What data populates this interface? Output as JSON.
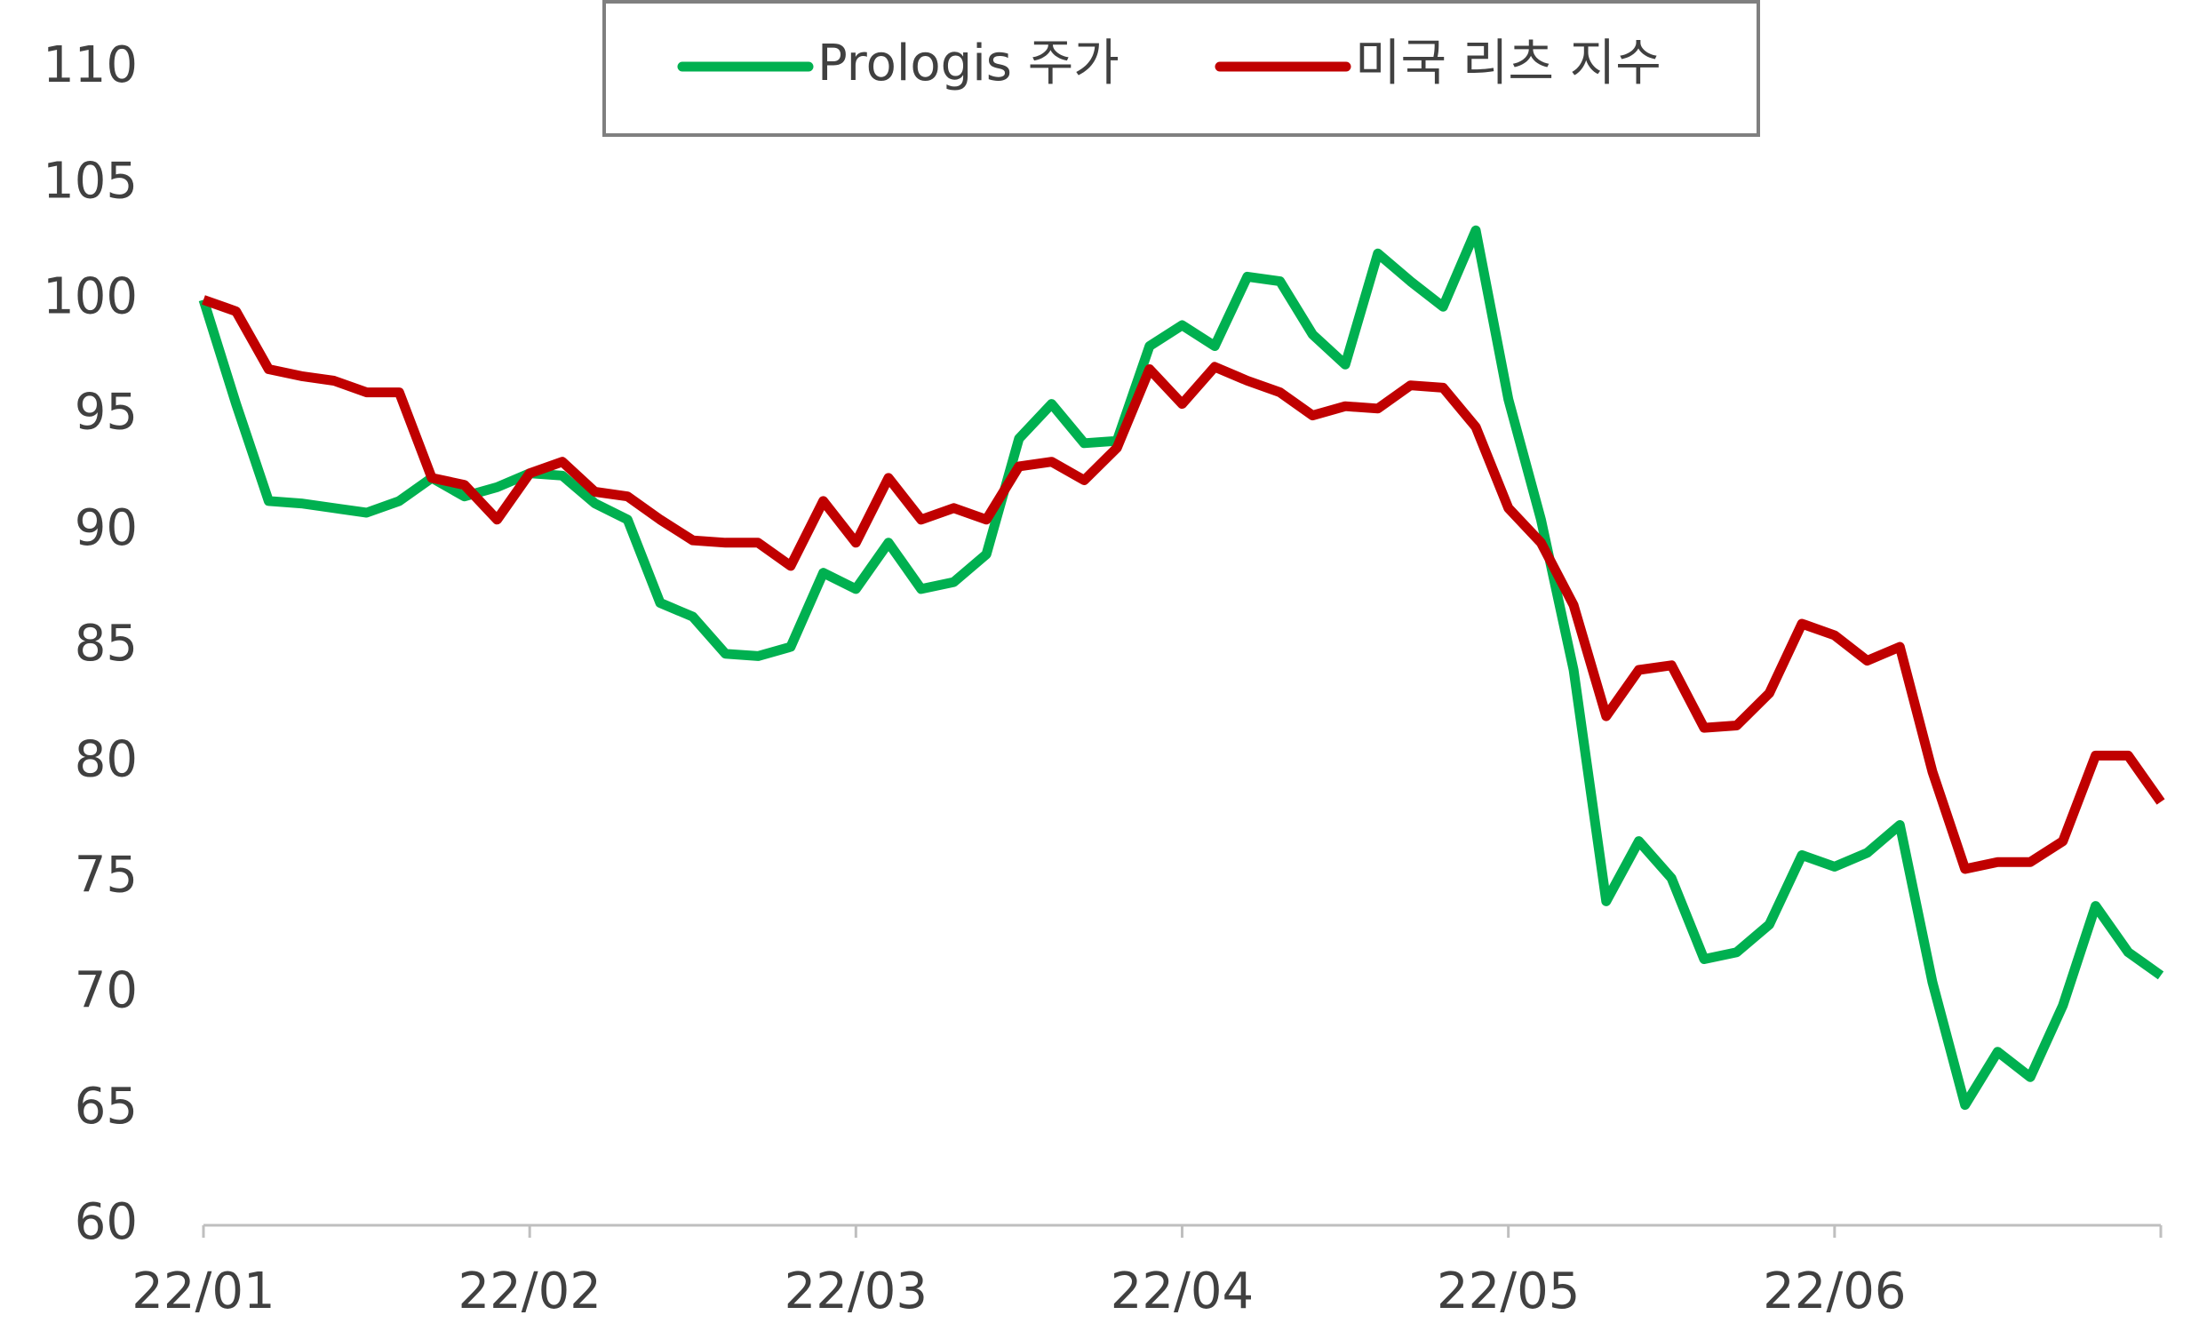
{
  "chart_data": {
    "type": "line",
    "categories": [
      "22/01",
      null,
      null,
      null,
      null,
      null,
      null,
      null,
      null,
      null,
      "22/02",
      null,
      null,
      null,
      null,
      null,
      null,
      null,
      null,
      null,
      "22/03",
      null,
      null,
      null,
      null,
      null,
      null,
      null,
      null,
      null,
      "22/04",
      null,
      null,
      null,
      null,
      null,
      null,
      null,
      null,
      null,
      "22/05",
      null,
      null,
      null,
      null,
      null,
      null,
      null,
      null,
      null,
      "22/06",
      null,
      null,
      null,
      null,
      null,
      null,
      null,
      null,
      null,
      null
    ],
    "series": [
      {
        "name": "Prologis 주가",
        "color": "#00b050",
        "values": [
          100,
          95.5,
          91.3,
          91.2,
          91,
          90.8,
          91.3,
          92.3,
          91.5,
          91.9,
          92.5,
          92.4,
          91.2,
          90.5,
          86.9,
          86.3,
          84.7,
          84.6,
          85,
          88.2,
          87.5,
          89.5,
          87.5,
          87.8,
          89,
          94,
          95.5,
          93.8,
          93.9,
          98,
          98.9,
          98,
          101,
          100.8,
          98.5,
          97.2,
          102,
          100.8,
          99.7,
          103,
          95.7,
          90.5,
          84,
          74,
          76.6,
          75,
          71.5,
          71.8,
          73,
          76,
          75.5,
          76.1,
          77.3,
          70.5,
          65.2,
          67.5,
          66.4,
          69.5,
          73.8,
          71.8,
          70.8
        ]
      },
      {
        "name": "미국 리츠 지수",
        "color": "#c00000",
        "values": [
          100,
          99.5,
          97,
          96.7,
          96.5,
          96,
          96,
          92.3,
          92,
          90.5,
          92.5,
          93,
          91.7,
          91.5,
          90.5,
          89.6,
          89.5,
          89.5,
          88.5,
          91.3,
          89.5,
          92.3,
          90.5,
          91,
          90.5,
          92.8,
          93,
          92.2,
          93.6,
          97,
          95.5,
          97.1,
          96.5,
          96,
          95,
          95.4,
          95.3,
          96.3,
          96.2,
          94.5,
          91,
          89.5,
          86.8,
          82,
          84,
          84.2,
          81.5,
          81.6,
          83,
          86,
          85.5,
          84.4,
          85,
          79.6,
          75.4,
          75.7,
          75.7,
          76.6,
          80.3,
          80.3,
          78.3
        ]
      }
    ],
    "ylim": [
      60,
      110
    ],
    "yticks": [
      60,
      65,
      70,
      75,
      80,
      85,
      90,
      95,
      100,
      105,
      110
    ],
    "grid": false,
    "legend": "top"
  }
}
